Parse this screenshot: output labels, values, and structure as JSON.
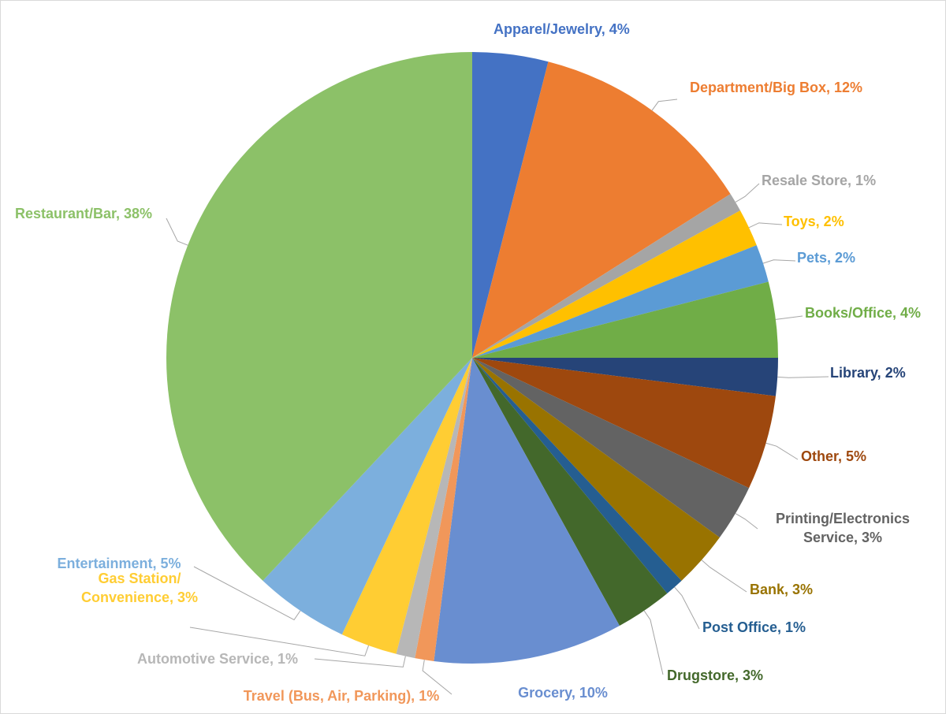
{
  "chart_data": {
    "type": "pie",
    "title": "",
    "series": [
      {
        "values": [
          4,
          12,
          1,
          2,
          2,
          4,
          2,
          5,
          3,
          3,
          1,
          3,
          10,
          1,
          1,
          3,
          5,
          38
        ]
      }
    ],
    "categories": [
      "Apparel/Jewelry",
      "Department/Big Box",
      "Resale Store",
      "Toys",
      "Pets",
      "Books/Office",
      "Library",
      "Other",
      "Printing/Electronics Service",
      "Bank",
      "Post Office",
      "Drugstore",
      "Grocery",
      "Travel (Bus, Air, Parking)",
      "Automotive Service",
      "Gas Station/ Convenience",
      "Entertainment",
      "Restaurant/Bar"
    ],
    "start_angle": "12 o'clock, clockwise",
    "slices": [
      {
        "label_lines": [
          "Apparel/Jewelry, 4%"
        ],
        "color": "#4472c4",
        "label_color": "#4472c4"
      },
      {
        "label_lines": [
          "Department/Big Box, 12%"
        ],
        "color": "#ed7d31",
        "label_color": "#ed7d31"
      },
      {
        "label_lines": [
          "Resale Store, 1%"
        ],
        "color": "#a5a5a5",
        "label_color": "#a5a5a5"
      },
      {
        "label_lines": [
          "Toys, 2%"
        ],
        "color": "#ffc000",
        "label_color": "#ffc000"
      },
      {
        "label_lines": [
          "Pets, 2%"
        ],
        "color": "#5b9bd5",
        "label_color": "#5b9bd5"
      },
      {
        "label_lines": [
          "Books/Office, 4%"
        ],
        "color": "#70ad47",
        "label_color": "#70ad47"
      },
      {
        "label_lines": [
          "Library, 2%"
        ],
        "color": "#264478",
        "label_color": "#264478"
      },
      {
        "label_lines": [
          "Other, 5%"
        ],
        "color": "#9e480e",
        "label_color": "#9e480e"
      },
      {
        "label_lines": [
          "Printing/Electronics",
          "Service, 3%"
        ],
        "color": "#636363",
        "label_color": "#636363"
      },
      {
        "label_lines": [
          "Bank, 3%"
        ],
        "color": "#997300",
        "label_color": "#997300"
      },
      {
        "label_lines": [
          "Post Office, 1%"
        ],
        "color": "#255e91",
        "label_color": "#255e91"
      },
      {
        "label_lines": [
          "Drugstore, 3%"
        ],
        "color": "#43682b",
        "label_color": "#43682b"
      },
      {
        "label_lines": [
          "Grocery, 10%"
        ],
        "color": "#698ed0",
        "label_color": "#698ed0"
      },
      {
        "label_lines": [
          "Travel (Bus, Air, Parking), 1%"
        ],
        "color": "#f1975a",
        "label_color": "#f1975a"
      },
      {
        "label_lines": [
          "Automotive Service, 1%"
        ],
        "color": "#b7b7b7",
        "label_color": "#b7b7b7"
      },
      {
        "label_lines": [
          "Gas Station/",
          "Convenience, 3%"
        ],
        "color": "#ffcd33",
        "label_color": "#ffcd33"
      },
      {
        "label_lines": [
          "Entertainment, 5%"
        ],
        "color": "#7cafdd",
        "label_color": "#7cafdd"
      },
      {
        "label_lines": [
          "Restaurant/Bar, 38%"
        ],
        "color": "#8cc168",
        "label_color": "#8cc168"
      }
    ],
    "legend": "none",
    "data_labels": "outside with leader lines"
  }
}
